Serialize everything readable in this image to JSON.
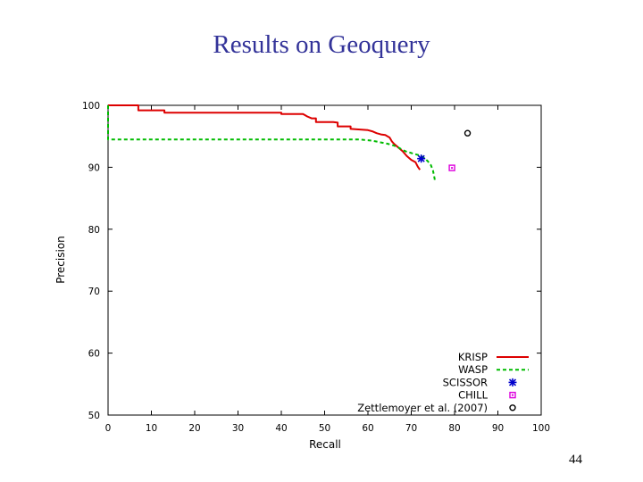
{
  "slide": {
    "title": "Results on Geoquery",
    "page_number": "44"
  },
  "chart_data": {
    "type": "line",
    "xlabel": "Recall",
    "ylabel": "Precision",
    "xlim": [
      0,
      100
    ],
    "ylim": [
      50,
      100
    ],
    "x_ticks": [
      0,
      10,
      20,
      30,
      40,
      50,
      60,
      70,
      80,
      90,
      100
    ],
    "y_ticks": [
      50,
      60,
      70,
      80,
      90,
      100
    ],
    "grid": false,
    "legend_position": "bottom-right",
    "series": [
      {
        "name": "KRISP",
        "kind": "line",
        "style": "solid",
        "color": "#dd0000",
        "x": [
          0,
          7,
          7,
          13,
          13,
          40,
          40,
          45,
          46,
          47,
          48,
          48,
          52,
          53,
          53,
          56,
          56,
          60,
          61,
          62,
          63,
          64,
          65,
          65.5,
          66,
          67,
          68,
          69,
          70,
          71,
          71.5,
          72
        ],
        "y": [
          100,
          100,
          99.2,
          99.2,
          98.8,
          98.8,
          98.6,
          98.6,
          98.2,
          97.9,
          97.9,
          97.3,
          97.3,
          97.2,
          96.6,
          96.6,
          96.2,
          96.0,
          95.8,
          95.5,
          95.3,
          95.2,
          94.8,
          94.2,
          93.8,
          93.2,
          92.6,
          91.8,
          91.2,
          90.8,
          90.1,
          89.6
        ]
      },
      {
        "name": "WASP",
        "kind": "line",
        "style": "dashed",
        "color": "#00bb00",
        "x": [
          0,
          0,
          40,
          58,
          61,
          63,
          64.5,
          66,
          67,
          68,
          69,
          70,
          71,
          72,
          73,
          73.8,
          74.5,
          75,
          75.3,
          75.5
        ],
        "y": [
          100,
          94.5,
          94.5,
          94.5,
          94.3,
          94.0,
          93.8,
          93.5,
          93.2,
          92.8,
          92.5,
          92.3,
          92.1,
          91.9,
          91.5,
          91.0,
          90.4,
          89.5,
          88.5,
          87.7
        ]
      },
      {
        "name": "SCISSOR",
        "kind": "point",
        "marker": "star",
        "color": "#0000cc",
        "x": [
          72.3
        ],
        "y": [
          91.4
        ]
      },
      {
        "name": "CHILL",
        "kind": "point",
        "marker": "square",
        "color": "#dd00dd",
        "x": [
          79.4
        ],
        "y": [
          89.9
        ]
      },
      {
        "name": "Zettlemoyer et al. (2007)",
        "kind": "point",
        "marker": "circle",
        "color": "#000000",
        "x": [
          83.0
        ],
        "y": [
          95.5
        ]
      }
    ]
  }
}
